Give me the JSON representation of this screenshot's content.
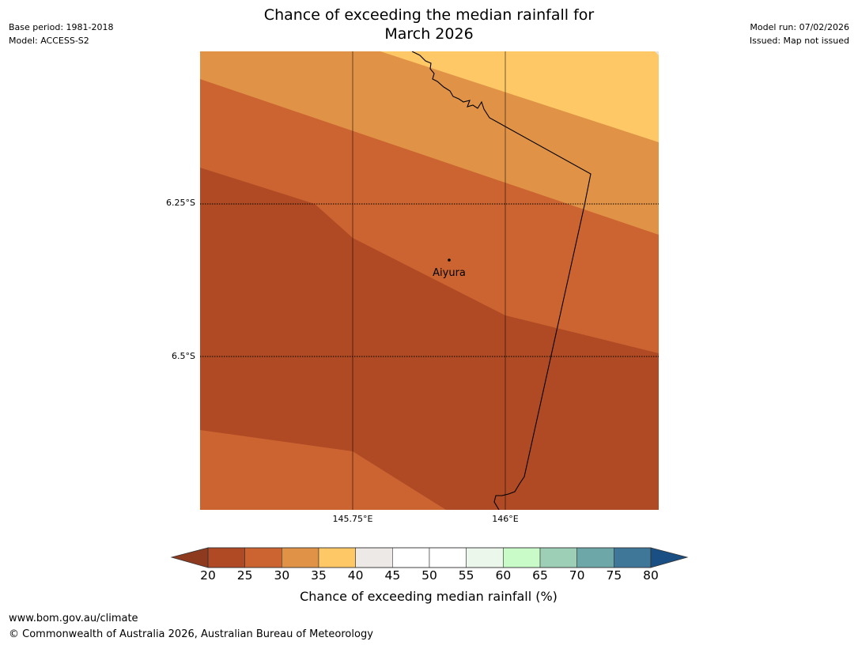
{
  "header": {
    "title_line1": "Chance of exceeding the median rainfall for",
    "title_line2": "March 2026",
    "base_period": "Base period: 1981-2018",
    "model": "Model: ACCESS-S2",
    "model_run": "Model run: 07/02/2026",
    "issued": "Issued: Map not issued"
  },
  "map": {
    "latitude_labels": [
      "6.25°S",
      "6.5°S"
    ],
    "longitude_labels": [
      "145.75°E",
      "146°E"
    ],
    "place_name": "Aiyura",
    "band_colors": [
      "#b04a24",
      "#cb6431",
      "#e09246",
      "#fdc865",
      "#e8e4df"
    ]
  },
  "colorbar": {
    "title": "Chance of exceeding median rainfall (%)",
    "ticks": [
      "20",
      "25",
      "30",
      "35",
      "40",
      "45",
      "50",
      "55",
      "60",
      "65",
      "70",
      "75",
      "80"
    ],
    "colors": [
      "#b04a24",
      "#cb6431",
      "#e09246",
      "#fdc865",
      "#ece9e6",
      "#ffffff",
      "#ffffff",
      "#eaf7ea",
      "#c8fbc8",
      "#9ccfb6",
      "#6ea7a8",
      "#3f7799"
    ],
    "under_color": "#8e3a1f",
    "over_color": "#1a4f84"
  },
  "footer": {
    "website": "www.bom.gov.au/climate",
    "copyright": "© Commonwealth of Australia 2026, Australian Bureau of Meteorology"
  }
}
